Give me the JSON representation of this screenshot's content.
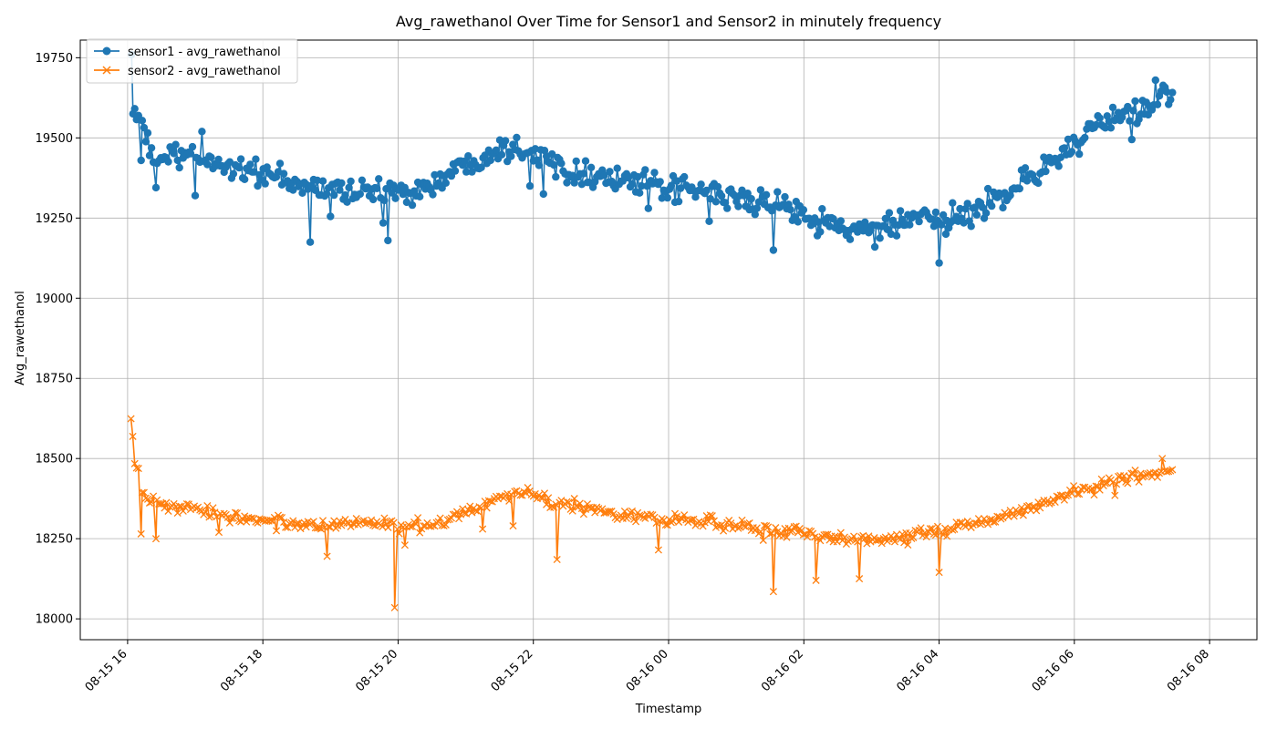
{
  "chart_data": {
    "type": "line",
    "title": "Avg_rawethanol Over Time for Sensor1 and Sensor2 in minutely frequency",
    "xlabel": "Timestamp",
    "ylabel": "Avg_rawethanol",
    "x_range_hours": [
      -0.7,
      16.7
    ],
    "ylim": [
      17935,
      19805
    ],
    "x_ticks": [
      {
        "hour": 0,
        "label": "08-15 16"
      },
      {
        "hour": 2,
        "label": "08-15 18"
      },
      {
        "hour": 4,
        "label": "08-15 20"
      },
      {
        "hour": 6,
        "label": "08-15 22"
      },
      {
        "hour": 8,
        "label": "08-16 00"
      },
      {
        "hour": 10,
        "label": "08-16 02"
      },
      {
        "hour": 12,
        "label": "08-16 04"
      },
      {
        "hour": 14,
        "label": "08-16 06"
      },
      {
        "hour": 16,
        "label": "08-16 08"
      }
    ],
    "y_ticks": [
      18000,
      18250,
      18500,
      18750,
      19000,
      19250,
      19500,
      19750
    ],
    "grid": true,
    "legend_position": "top-left",
    "time_start_hour": 0.05,
    "time_end_hour": 15.45,
    "series": [
      {
        "name": "sensor1 - avg_rawethanol",
        "color": "#1f77b4",
        "marker": "circle",
        "trend": [
          [
            0.05,
            19700
          ],
          [
            0.1,
            19600
          ],
          [
            0.2,
            19530
          ],
          [
            0.35,
            19450
          ],
          [
            0.5,
            19440
          ],
          [
            1.0,
            19440
          ],
          [
            1.5,
            19410
          ],
          [
            2.0,
            19390
          ],
          [
            2.5,
            19350
          ],
          [
            3.0,
            19340
          ],
          [
            3.5,
            19335
          ],
          [
            4.0,
            19330
          ],
          [
            4.5,
            19350
          ],
          [
            5.0,
            19420
          ],
          [
            5.5,
            19470
          ],
          [
            5.9,
            19470
          ],
          [
            6.2,
            19430
          ],
          [
            6.5,
            19405
          ],
          [
            7.0,
            19380
          ],
          [
            7.5,
            19360
          ],
          [
            8.0,
            19340
          ],
          [
            8.5,
            19330
          ],
          [
            9.0,
            19310
          ],
          [
            9.5,
            19295
          ],
          [
            10.0,
            19270
          ],
          [
            10.5,
            19220
          ],
          [
            11.0,
            19210
          ],
          [
            11.5,
            19240
          ],
          [
            12.0,
            19240
          ],
          [
            12.5,
            19270
          ],
          [
            13.0,
            19330
          ],
          [
            13.5,
            19400
          ],
          [
            14.0,
            19480
          ],
          [
            14.5,
            19550
          ],
          [
            15.0,
            19590
          ],
          [
            15.45,
            19650
          ]
        ],
        "noise": 30,
        "outliers": [
          [
            0.06,
            19760
          ],
          [
            0.08,
            19575
          ],
          [
            0.2,
            19430
          ],
          [
            0.42,
            19345
          ],
          [
            1.0,
            19320
          ],
          [
            1.1,
            19520
          ],
          [
            2.7,
            19175
          ],
          [
            3.0,
            19255
          ],
          [
            3.85,
            19180
          ],
          [
            3.78,
            19235
          ],
          [
            6.15,
            19325
          ],
          [
            5.95,
            19350
          ],
          [
            7.7,
            19280
          ],
          [
            8.6,
            19240
          ],
          [
            9.55,
            19150
          ],
          [
            10.2,
            19195
          ],
          [
            11.05,
            19160
          ],
          [
            12.0,
            19110
          ],
          [
            12.1,
            19200
          ],
          [
            14.85,
            19495
          ],
          [
            15.2,
            19680
          ]
        ]
      },
      {
        "name": "sensor2 - avg_rawethanol",
        "color": "#ff7f0e",
        "marker": "x",
        "trend": [
          [
            0.05,
            18630
          ],
          [
            0.07,
            18595
          ],
          [
            0.1,
            18500
          ],
          [
            0.18,
            18430
          ],
          [
            0.3,
            18370
          ],
          [
            0.5,
            18355
          ],
          [
            1.0,
            18340
          ],
          [
            1.5,
            18320
          ],
          [
            2.0,
            18310
          ],
          [
            2.5,
            18295
          ],
          [
            3.0,
            18295
          ],
          [
            3.5,
            18300
          ],
          [
            4.0,
            18290
          ],
          [
            4.5,
            18285
          ],
          [
            5.0,
            18340
          ],
          [
            5.5,
            18375
          ],
          [
            5.9,
            18395
          ],
          [
            6.3,
            18360
          ],
          [
            7.0,
            18340
          ],
          [
            7.5,
            18320
          ],
          [
            8.0,
            18310
          ],
          [
            8.5,
            18300
          ],
          [
            9.0,
            18295
          ],
          [
            9.5,
            18280
          ],
          [
            10.0,
            18265
          ],
          [
            10.5,
            18255
          ],
          [
            11.0,
            18245
          ],
          [
            11.5,
            18255
          ],
          [
            12.0,
            18275
          ],
          [
            12.5,
            18295
          ],
          [
            13.0,
            18320
          ],
          [
            13.5,
            18360
          ],
          [
            14.0,
            18395
          ],
          [
            14.5,
            18420
          ],
          [
            15.0,
            18450
          ],
          [
            15.45,
            18465
          ]
        ],
        "noise": 15,
        "outliers": [
          [
            0.2,
            18265
          ],
          [
            0.42,
            18250
          ],
          [
            1.35,
            18270
          ],
          [
            2.2,
            18275
          ],
          [
            2.95,
            18195
          ],
          [
            3.95,
            18035
          ],
          [
            4.1,
            18230
          ],
          [
            5.25,
            18280
          ],
          [
            5.7,
            18290
          ],
          [
            6.35,
            18185
          ],
          [
            7.85,
            18215
          ],
          [
            9.4,
            18245
          ],
          [
            9.55,
            18085
          ],
          [
            10.18,
            18120
          ],
          [
            10.82,
            18125
          ],
          [
            12.0,
            18145
          ],
          [
            14.6,
            18385
          ],
          [
            15.3,
            18500
          ]
        ]
      }
    ]
  }
}
